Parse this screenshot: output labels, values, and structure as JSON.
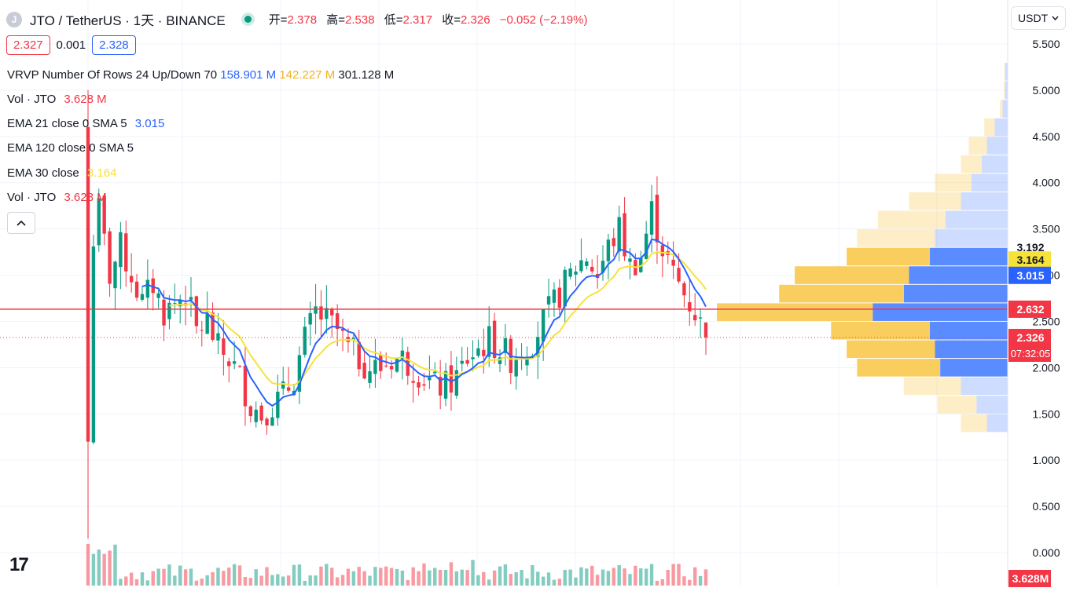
{
  "header": {
    "icon_letter": "J",
    "symbol": "JTO / TetherUS · 1天 · BINANCE",
    "ohlc": [
      {
        "label": "开=",
        "value": "2.378"
      },
      {
        "label": "高=",
        "value": "2.538"
      },
      {
        "label": "低=",
        "value": "2.317"
      },
      {
        "label": "收=",
        "value": "2.326"
      }
    ],
    "change": "−0.052 (−2.19%)",
    "bid": "2.327",
    "spread": "0.001",
    "ask": "2.328"
  },
  "indicators": {
    "vrvp": {
      "name": "VRVP Number Of Rows 24 Up/Down 70",
      "up": "158.901 M",
      "down": "142.227 M",
      "total": "301.128 M"
    },
    "vol1": {
      "name": "Vol · JTO",
      "value": "3.628 M"
    },
    "ema21": {
      "name": "EMA 21 close 0 SMA 5",
      "value": "3.015"
    },
    "ema120": {
      "name": "EMA 120 close 0 SMA 5"
    },
    "ema30": {
      "name": "EMA 30 close",
      "value": "3.164"
    },
    "vol2": {
      "name": "Vol · JTO",
      "value": "3.628 M"
    }
  },
  "toolbar": {
    "currency": "USDT",
    "collapse_icon": "chevron-up-icon",
    "logo_text": "17"
  },
  "colors": {
    "up": "#089981",
    "down": "#f23645",
    "ema21": "#2962ff",
    "ema30": "#f7e23a",
    "profile_up": "#5b8cff",
    "profile_down": "#f9cd5e",
    "hline": "#f23645"
  },
  "chart_data": {
    "type": "candlestick",
    "title": "JTO / TetherUS · 1天 · BINANCE",
    "y_ticks": [
      5.5,
      5.0,
      4.5,
      4.0,
      3.5,
      3.0,
      2.5,
      2.0,
      1.5,
      1.0,
      0.5,
      0.0
    ],
    "y_tick_labels": [
      "5.500",
      "5.000",
      "4.500",
      "4.000",
      "3.500",
      "3.000",
      "2.500",
      "2.000",
      "1.500",
      "1.000",
      "0.500",
      "0.000"
    ],
    "ylim": [
      0.0,
      5.6
    ],
    "grid": true,
    "candles_count": 115,
    "close_path": [
      [
        0,
        1.2
      ],
      [
        1,
        3.4
      ],
      [
        2,
        3.7
      ],
      [
        4,
        3.0
      ],
      [
        6,
        3.3
      ],
      [
        8,
        3.0
      ],
      [
        10,
        2.7
      ],
      [
        12,
        2.9
      ],
      [
        14,
        2.6
      ],
      [
        16,
        2.7
      ],
      [
        18,
        2.8
      ],
      [
        20,
        2.4
      ],
      [
        22,
        2.5
      ],
      [
        24,
        2.2
      ],
      [
        26,
        2.1
      ],
      [
        28,
        1.9
      ],
      [
        30,
        1.6
      ],
      [
        32,
        1.5
      ],
      [
        34,
        1.6
      ],
      [
        36,
        1.7
      ],
      [
        38,
        1.9
      ],
      [
        40,
        2.3
      ],
      [
        42,
        2.6
      ],
      [
        44,
        2.5
      ],
      [
        46,
        2.4
      ],
      [
        48,
        2.2
      ],
      [
        50,
        2.1
      ],
      [
        52,
        2.0
      ],
      [
        54,
        2.0
      ],
      [
        56,
        2.1
      ],
      [
        58,
        2.1
      ],
      [
        60,
        2.0
      ],
      [
        62,
        1.9
      ],
      [
        64,
        1.8
      ],
      [
        66,
        1.8
      ],
      [
        68,
        1.9
      ],
      [
        70,
        2.1
      ],
      [
        72,
        2.2
      ],
      [
        74,
        2.3
      ],
      [
        76,
        2.2
      ],
      [
        78,
        2.1
      ],
      [
        80,
        2.2
      ],
      [
        82,
        2.3
      ],
      [
        84,
        2.5
      ],
      [
        86,
        2.7
      ],
      [
        88,
        2.9
      ],
      [
        90,
        3.1
      ],
      [
        92,
        3.2
      ],
      [
        94,
        3.0
      ],
      [
        96,
        3.3
      ],
      [
        98,
        3.5
      ],
      [
        100,
        3.1
      ],
      [
        102,
        3.2
      ],
      [
        104,
        3.7
      ],
      [
        106,
        3.3
      ],
      [
        108,
        3.0
      ],
      [
        110,
        2.8
      ],
      [
        112,
        2.6
      ],
      [
        114,
        2.33
      ]
    ],
    "series": [
      {
        "name": "EMA 21 close 0 SMA 5",
        "last": 3.015
      },
      {
        "name": "EMA 30 close",
        "last": 3.164
      }
    ],
    "horizontal_line": 2.632,
    "last_price": 2.326,
    "countdown": "07:32:05",
    "price_labels": [
      {
        "value": 3.192,
        "text": "3.192"
      },
      {
        "value": 3.164,
        "text": "3.164"
      },
      {
        "value": 3.015,
        "text": "3.015"
      },
      {
        "value": 2.632,
        "text": "2.632"
      },
      {
        "value": 2.326,
        "text": "2.326"
      }
    ],
    "volume_label": "3.628M",
    "volume_profile": [
      {
        "low": 1.3,
        "high": 1.5,
        "up": 8,
        "down": 10
      },
      {
        "low": 1.5,
        "high": 1.7,
        "up": 12,
        "down": 15
      },
      {
        "low": 1.7,
        "high": 1.9,
        "up": 18,
        "down": 22
      },
      {
        "low": 1.9,
        "high": 2.1,
        "up": 26,
        "down": 32
      },
      {
        "low": 2.1,
        "high": 2.3,
        "up": 28,
        "down": 34
      },
      {
        "low": 2.3,
        "high": 2.5,
        "up": 30,
        "down": 38
      },
      {
        "low": 2.5,
        "high": 2.7,
        "up": 52,
        "down": 60
      },
      {
        "low": 2.7,
        "high": 2.9,
        "up": 40,
        "down": 48
      },
      {
        "low": 2.9,
        "high": 3.1,
        "up": 38,
        "down": 44
      },
      {
        "low": 3.1,
        "high": 3.3,
        "up": 30,
        "down": 32
      },
      {
        "low": 3.3,
        "high": 3.5,
        "up": 28,
        "down": 30
      },
      {
        "low": 3.5,
        "high": 3.7,
        "up": 24,
        "down": 26
      },
      {
        "low": 3.7,
        "high": 3.9,
        "up": 18,
        "down": 20
      },
      {
        "low": 3.9,
        "high": 4.1,
        "up": 14,
        "down": 14
      },
      {
        "low": 4.1,
        "high": 4.3,
        "up": 10,
        "down": 8
      },
      {
        "low": 4.3,
        "high": 4.5,
        "up": 8,
        "down": 7
      },
      {
        "low": 4.5,
        "high": 4.7,
        "up": 5,
        "down": 4
      },
      {
        "low": 4.7,
        "high": 4.9,
        "up": 2,
        "down": 1
      },
      {
        "low": 4.9,
        "high": 5.1,
        "up": 1,
        "down": 0.5
      },
      {
        "low": 5.1,
        "high": 5.3,
        "up": 1,
        "down": 0.3
      }
    ]
  }
}
